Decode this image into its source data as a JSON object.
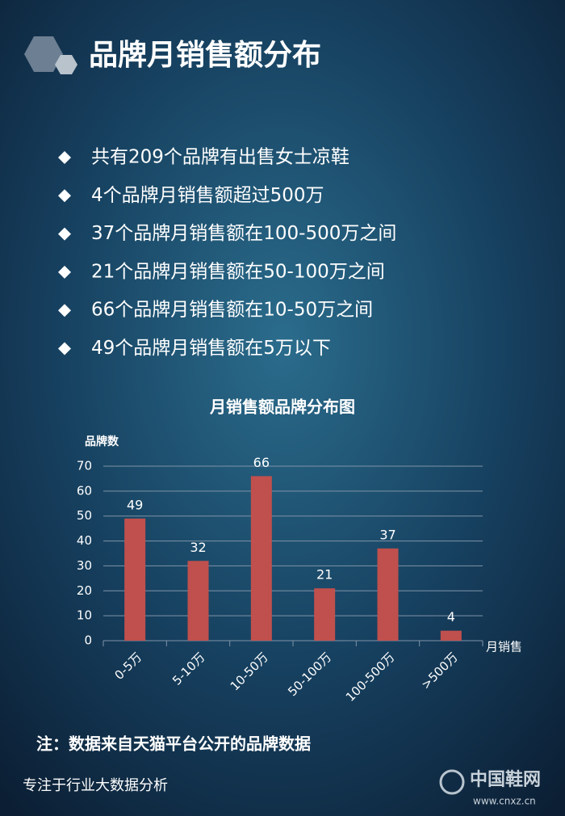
{
  "title": "品牌月销售额分布",
  "bullets": [
    "共有209个品牌有出售女士凉鞋",
    "4个品牌月销售额超过500万",
    "37个品牌月销售额在100-500万之间",
    "21个品牌月销售额在50-100万之间",
    "66个品牌月销售额在10-50万之间",
    "49个品牌月销售额在5万以下"
  ],
  "chart_data": {
    "type": "bar",
    "title": "月销售额品牌分布图",
    "y_label": "品牌数",
    "x_label": "月销售",
    "categories": [
      "0-5万",
      "5-10万",
      "10-50万",
      "50-100万",
      "100-500万",
      ">500万"
    ],
    "values": [
      49,
      32,
      66,
      21,
      37,
      4
    ],
    "color": "#c0504d",
    "ylim": [
      0,
      70
    ],
    "yticks": [
      0,
      10,
      20,
      30,
      40,
      50,
      60,
      70
    ],
    "grid": true
  },
  "note": "注：数据来自天猫平台公开的品牌数据",
  "footer": "专注于行业大数据分析",
  "watermark": {
    "name": "中国鞋网",
    "url": "www.cnxz.cn"
  }
}
